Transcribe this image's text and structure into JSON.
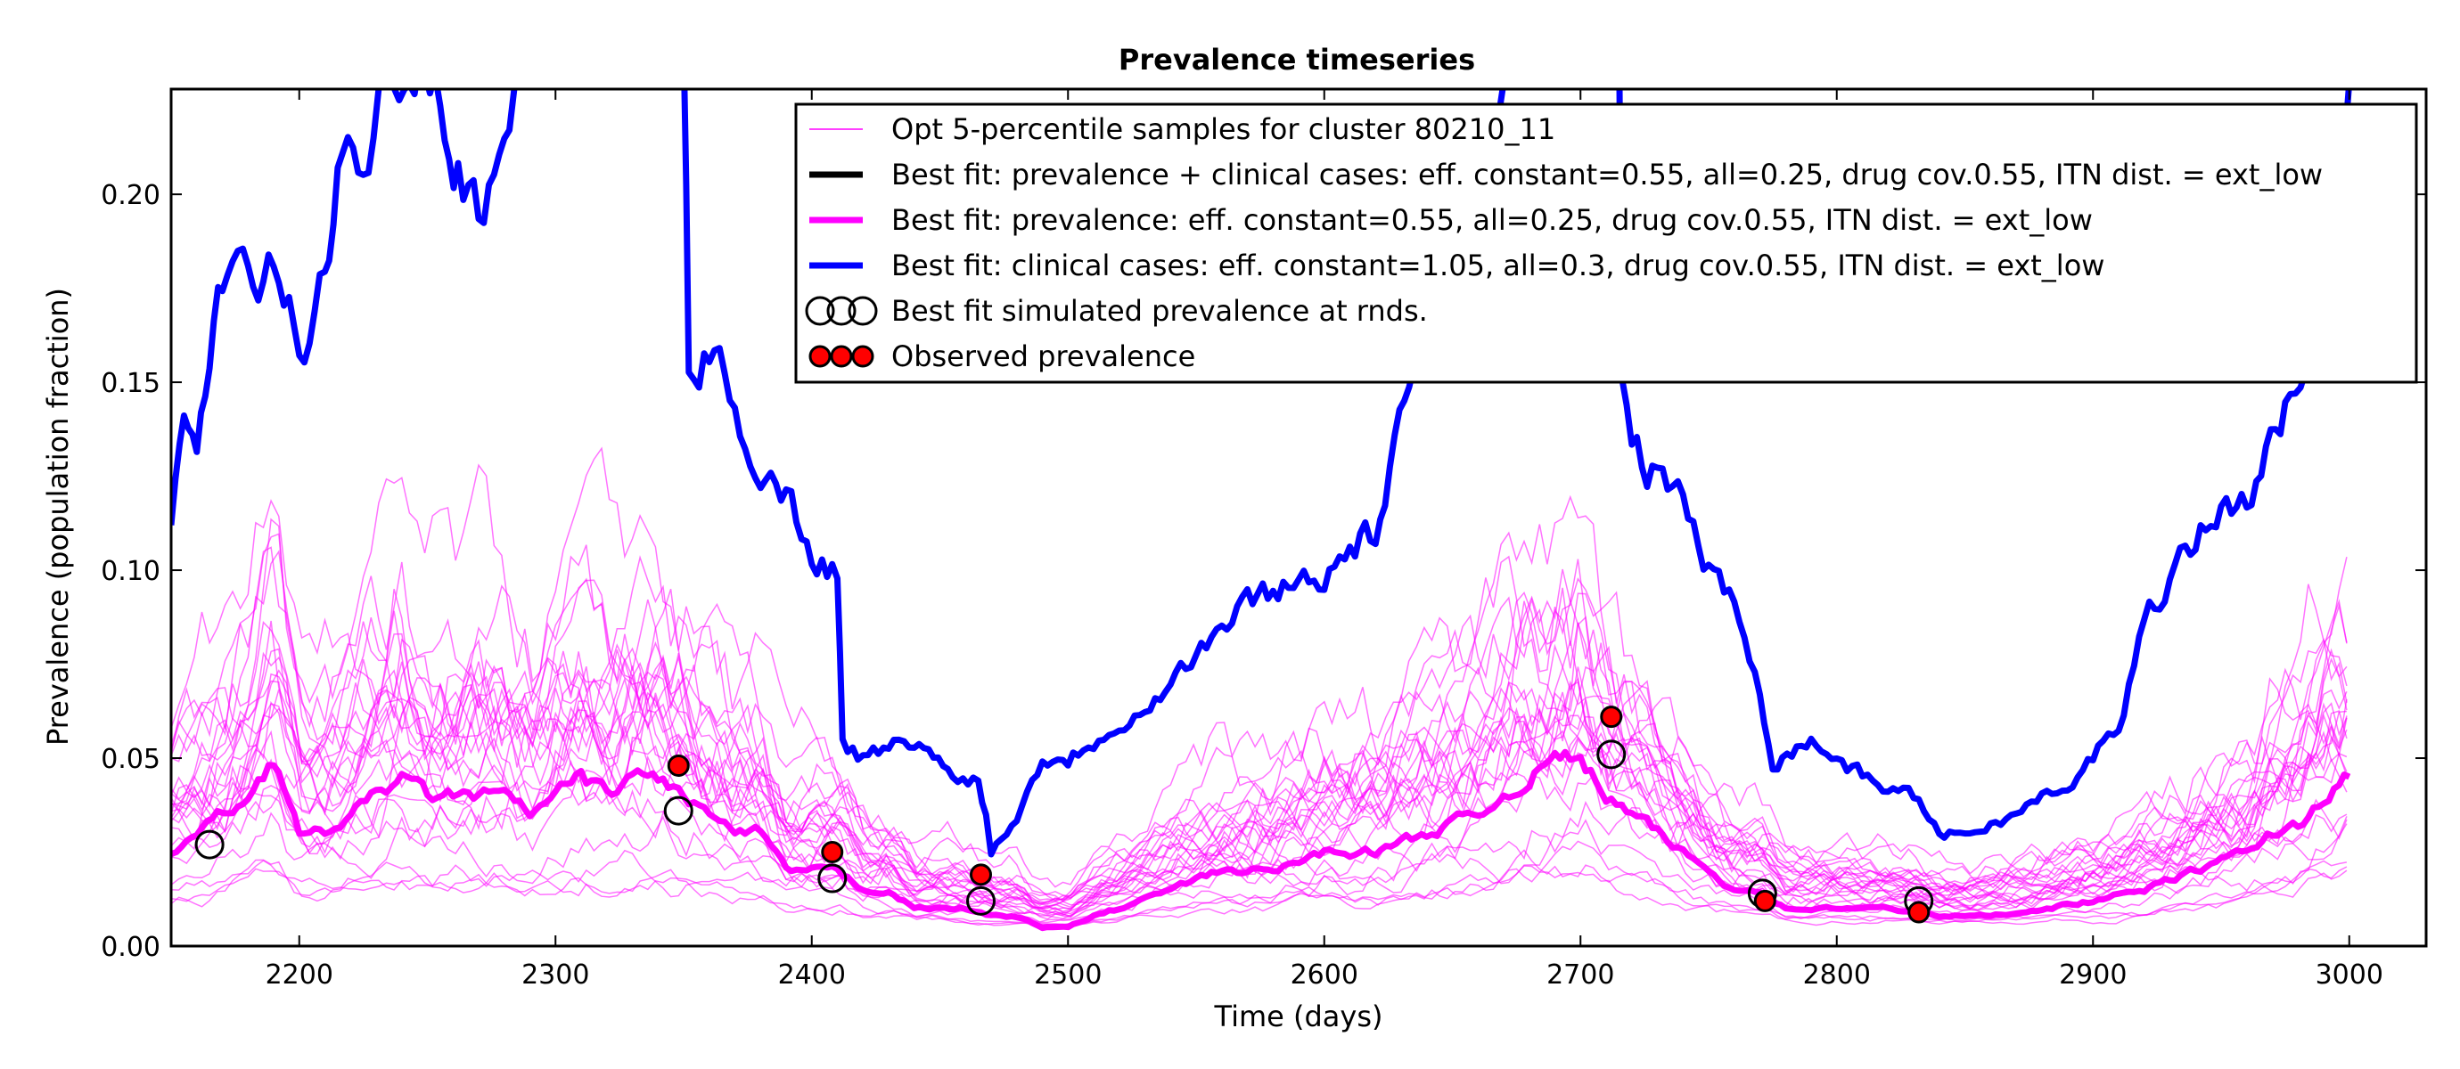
{
  "chart_data": {
    "type": "line",
    "title": "Prevalence timeseries",
    "xlabel": "Time (days)",
    "ylabel": "Prevalence (population fraction)",
    "xlim": [
      2150,
      3030
    ],
    "ylim": [
      0.0,
      0.228
    ],
    "x_ticks": [
      2200,
      2300,
      2400,
      2500,
      2600,
      2700,
      2800,
      2900,
      3000
    ],
    "x_tick_labels": [
      "2200",
      "2300",
      "2400",
      "2500",
      "2600",
      "2700",
      "2800",
      "2900",
      "3000"
    ],
    "y_ticks": [
      0.0,
      0.05,
      0.1,
      0.15,
      0.2
    ],
    "y_tick_labels": [
      "0.00",
      "0.05",
      "0.10",
      "0.15",
      "0.20"
    ],
    "grid": false,
    "legend_position": "top-right",
    "legend": [
      {
        "label": "Opt 5-percentile samples for cluster 80210_11",
        "style": "thin-line",
        "color": "#ff00ff"
      },
      {
        "label": "Best fit: prevalence + clinical cases: eff. constant=0.55, all=0.25, drug cov.0.55, ITN dist. = ext_low",
        "style": "line",
        "color": "#000000"
      },
      {
        "label": "Best fit: prevalence: eff. constant=0.55, all=0.25, drug cov.0.55, ITN dist. = ext_low",
        "style": "line",
        "color": "#ff00ff"
      },
      {
        "label": "Best fit: clinical cases: eff. constant=1.05, all=0.3, drug cov.0.55, ITN dist. = ext_low",
        "style": "line",
        "color": "#0000ff"
      },
      {
        "label": "Best fit simulated prevalence at rnds.",
        "style": "open-circles",
        "color": "#000000"
      },
      {
        "label": "Observed prevalence",
        "style": "filled-circles",
        "color": "#ff0000"
      }
    ],
    "series": [
      {
        "name": "Best fit: clinical cases: eff. constant=1.05, all=0.3, drug cov.0.55, ITN dist. = ext_low",
        "color": "#0000ff",
        "x": [
          2150,
          2155,
          2160,
          2165,
          2170,
          2180,
          2190,
          2200,
          2210,
          2215,
          2225,
          2235,
          2245,
          2255,
          2262,
          2270,
          2280,
          2290,
          2300,
          2320,
          2335,
          2345,
          2350,
          2352,
          2360,
          2370,
          2380,
          2390,
          2400,
          2410,
          2412,
          2420,
          2440,
          2455,
          2465,
          2468,
          2470,
          2480,
          2490,
          2500,
          2520,
          2540,
          2560,
          2580,
          2600,
          2620,
          2635,
          2650,
          2680,
          2700,
          2710,
          2715,
          2716,
          2720,
          2730,
          2740,
          2750,
          2760,
          2770,
          2775,
          2790,
          2810,
          2830,
          2840,
          2850,
          2870,
          2880,
          2890,
          2900,
          2910,
          2920,
          2930,
          2940,
          2950,
          2960,
          2975,
          2985,
          2995,
          3000
        ],
        "y": [
          0.11,
          0.14,
          0.13,
          0.16,
          0.175,
          0.175,
          0.18,
          0.16,
          0.175,
          0.2,
          0.21,
          0.235,
          0.24,
          0.23,
          0.21,
          0.2,
          0.215,
          0.24,
          0.24,
          0.24,
          0.24,
          0.24,
          0.24,
          0.15,
          0.16,
          0.14,
          0.13,
          0.12,
          0.105,
          0.1,
          0.055,
          0.05,
          0.055,
          0.045,
          0.045,
          0.035,
          0.025,
          0.035,
          0.05,
          0.05,
          0.06,
          0.07,
          0.085,
          0.095,
          0.1,
          0.11,
          0.15,
          0.2,
          0.24,
          0.24,
          0.24,
          0.24,
          0.15,
          0.13,
          0.125,
          0.12,
          0.1,
          0.09,
          0.07,
          0.05,
          0.055,
          0.045,
          0.04,
          0.03,
          0.03,
          0.035,
          0.04,
          0.04,
          0.05,
          0.06,
          0.085,
          0.1,
          0.11,
          0.115,
          0.12,
          0.14,
          0.17,
          0.2,
          0.23
        ]
      },
      {
        "name": "Best fit: prevalence: eff. constant=0.55, all=0.25, drug cov.0.55, ITN dist. = ext_low",
        "color": "#ff00ff",
        "x": [
          2150,
          2160,
          2170,
          2180,
          2190,
          2200,
          2210,
          2220,
          2230,
          2240,
          2250,
          2260,
          2270,
          2280,
          2290,
          2300,
          2310,
          2320,
          2330,
          2340,
          2350,
          2360,
          2370,
          2380,
          2390,
          2400,
          2410,
          2420,
          2430,
          2440,
          2450,
          2460,
          2470,
          2480,
          2490,
          2500,
          2510,
          2520,
          2540,
          2560,
          2580,
          2600,
          2620,
          2640,
          2660,
          2680,
          2690,
          2700,
          2710,
          2720,
          2730,
          2740,
          2750,
          2760,
          2770,
          2780,
          2790,
          2800,
          2820,
          2840,
          2860,
          2880,
          2900,
          2920,
          2940,
          2960,
          2970,
          2980,
          2990,
          3000
        ],
        "y": [
          0.025,
          0.03,
          0.035,
          0.04,
          0.05,
          0.03,
          0.03,
          0.035,
          0.04,
          0.045,
          0.04,
          0.04,
          0.04,
          0.04,
          0.035,
          0.04,
          0.045,
          0.04,
          0.045,
          0.045,
          0.04,
          0.035,
          0.03,
          0.03,
          0.02,
          0.02,
          0.02,
          0.015,
          0.015,
          0.01,
          0.01,
          0.01,
          0.008,
          0.008,
          0.005,
          0.005,
          0.008,
          0.01,
          0.015,
          0.02,
          0.02,
          0.025,
          0.025,
          0.03,
          0.035,
          0.045,
          0.05,
          0.05,
          0.04,
          0.035,
          0.03,
          0.025,
          0.02,
          0.015,
          0.015,
          0.01,
          0.01,
          0.01,
          0.01,
          0.008,
          0.008,
          0.01,
          0.012,
          0.015,
          0.02,
          0.025,
          0.03,
          0.032,
          0.04,
          0.045
        ]
      }
    ],
    "best_fit_simulated_prevalence": {
      "x": [
        2165,
        2348,
        2408,
        2466,
        2712,
        2771,
        2832
      ],
      "y": [
        0.027,
        0.036,
        0.018,
        0.012,
        0.051,
        0.014,
        0.012
      ]
    },
    "observed_prevalence": {
      "x": [
        2348,
        2408,
        2466,
        2712,
        2772,
        2832
      ],
      "y": [
        0.048,
        0.025,
        0.019,
        0.061,
        0.012,
        0.009
      ]
    }
  }
}
